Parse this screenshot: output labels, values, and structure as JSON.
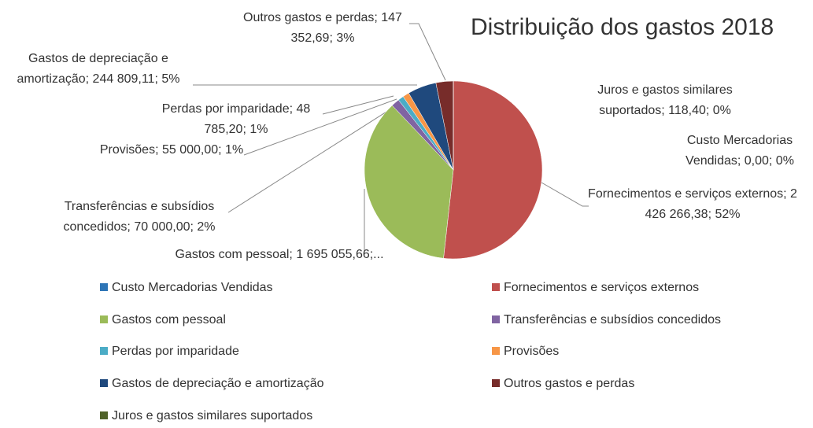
{
  "chart_data": {
    "type": "pie",
    "title": "Distribuição dos gastos 2018",
    "categories": [
      "Custo Mercadorias Vendidas",
      "Fornecimentos e serviços externos",
      "Gastos com pessoal",
      "Transferências e subsídios concedidos",
      "Perdas por imparidade",
      "Provisões",
      "Gastos de depreciação e amortização",
      "Outros gastos e perdas",
      "Juros e gastos similares suportados"
    ],
    "values": [
      0,
      2426266.38,
      1695055.66,
      70000,
      48785.2,
      55000,
      244809.11,
      147352.69,
      118.4
    ],
    "value_labels": [
      "Custo Mercadorias Vendidas; 0,00; 0%",
      "Fornecimentos e serviços externos; 2 426 266,38; 52%",
      "Gastos com pessoal; 1 695 055,66;...",
      "Transferências e subsídios concedidos; 70 000,00; 2%",
      "Perdas por imparidade; 48 785,20; 1%",
      "Provisões; 55 000,00; 1%",
      "Gastos de depreciação e amortização; 244 809,11; 5%",
      "Outros gastos e perdas; 147 352,69; 3%",
      "Juros e gastos similares suportados; 118,40; 0%"
    ],
    "colors": [
      "#2e75b6",
      "#c0504d",
      "#9bbb59",
      "#8064a2",
      "#4bacc6",
      "#f79646",
      "#1f497d",
      "#772c2a",
      "#4f6228"
    ],
    "legend": "bottom"
  }
}
